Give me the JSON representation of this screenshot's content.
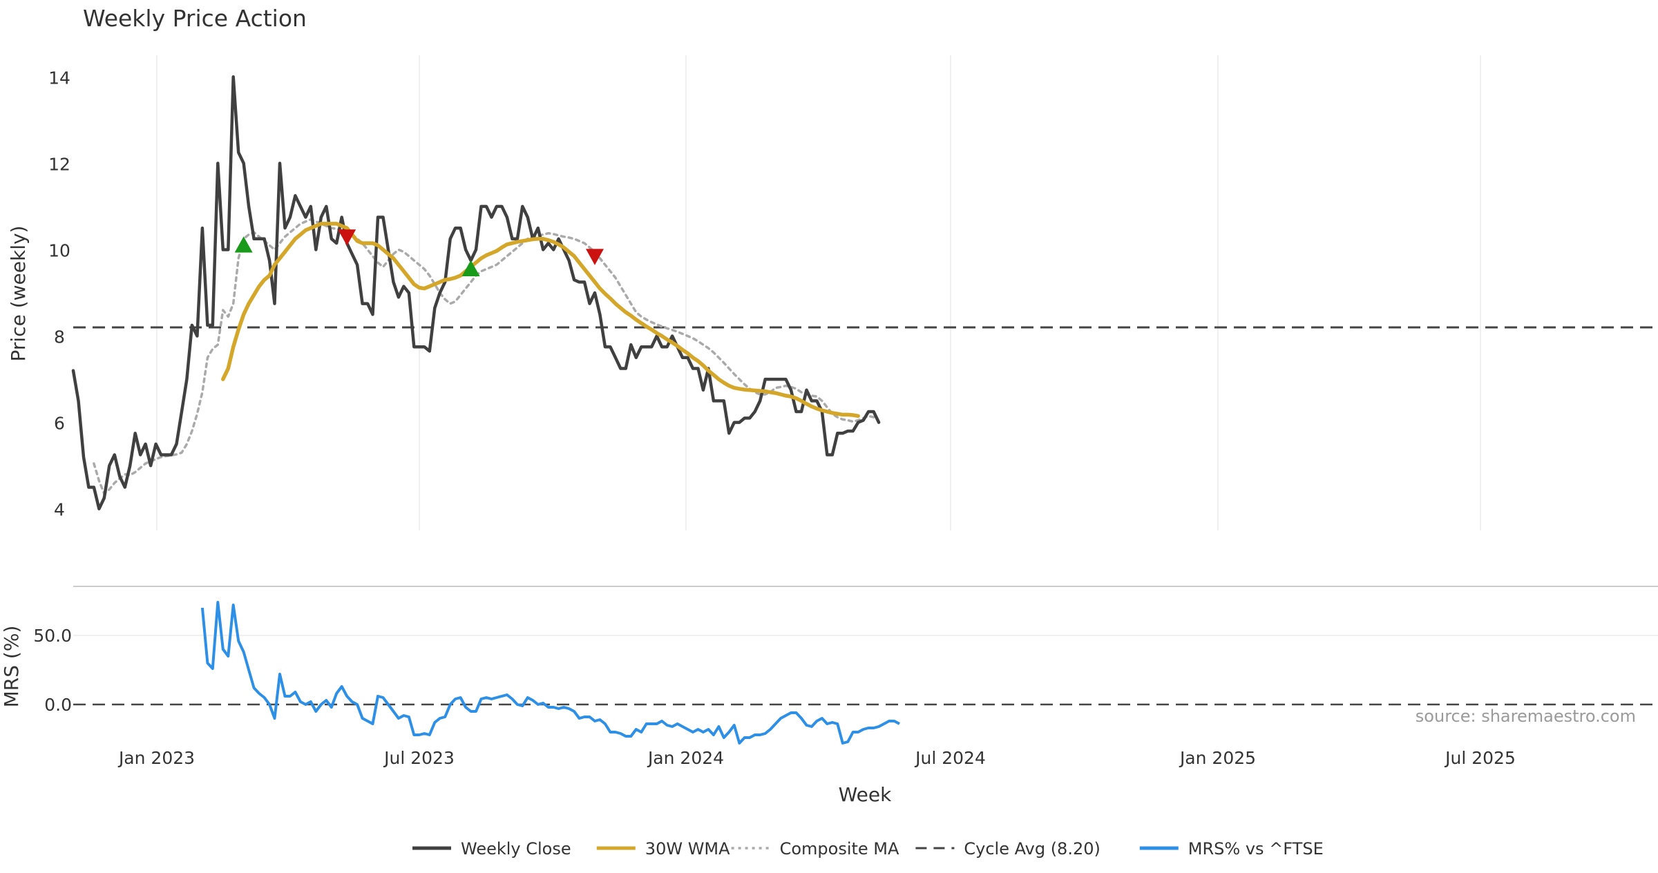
{
  "chart_data": {
    "type": "line",
    "title": "Weekly Price Action",
    "xlabel": "Week",
    "watermark": "source: sharemaestro.com",
    "x_ticks": [
      "Jan 2023",
      "Jul 2023",
      "Jan 2024",
      "Jul 2024",
      "Jan 2025",
      "Jul 2025"
    ],
    "price_panel": {
      "ylabel": "Price (weekly)",
      "ylim": [
        3.5,
        14.5
      ],
      "y_ticks": [
        4,
        6,
        8,
        10,
        12,
        14
      ],
      "grid_x": true,
      "series": [
        {
          "name": "Weekly Close",
          "color": "#404040",
          "style": "solid",
          "values": [
            7.2,
            6.5,
            5.2,
            4.5,
            4.5,
            4.0,
            4.25,
            5.0,
            5.25,
            4.75,
            4.5,
            5.0,
            5.75,
            5.25,
            5.5,
            5.0,
            5.5,
            5.25,
            5.25,
            5.25,
            5.5,
            6.25,
            7.0,
            8.25,
            8.0,
            10.5,
            8.25,
            8.25,
            12.0,
            10.0,
            10.0,
            14.0,
            12.25,
            12.0,
            11.0,
            10.25,
            10.25,
            10.25,
            9.75,
            8.75,
            12.0,
            10.5,
            10.75,
            11.25,
            11.0,
            10.75,
            11.0,
            10.0,
            10.75,
            11.0,
            10.25,
            10.15,
            10.75,
            10.15,
            9.9,
            9.65,
            8.75,
            8.75,
            8.5,
            10.75,
            10.75,
            10.0,
            9.25,
            8.9,
            9.15,
            9.0,
            7.75,
            7.75,
            7.75,
            7.65,
            8.65,
            9.0,
            9.25,
            10.25,
            10.5,
            10.5,
            10.0,
            9.75,
            10.0,
            11.0,
            11.0,
            10.75,
            11.0,
            11.0,
            10.75,
            10.25,
            10.25,
            11.0,
            10.75,
            10.25,
            10.5,
            10.0,
            10.15,
            10.0,
            10.25,
            10.0,
            9.75,
            9.3,
            9.25,
            9.25,
            8.75,
            9.0,
            8.5,
            7.75,
            7.75,
            7.5,
            7.25,
            7.25,
            7.8,
            7.5,
            7.75,
            7.75,
            7.75,
            8.0,
            7.75,
            7.75,
            8.0,
            7.75,
            7.5,
            7.5,
            7.25,
            7.25,
            6.75,
            7.25,
            6.5,
            6.5,
            6.5,
            5.75,
            6.0,
            6.0,
            6.1,
            6.1,
            6.25,
            6.5,
            7.0,
            7.0,
            7.0,
            7.0,
            7.0,
            6.75,
            6.25,
            6.25,
            6.75,
            6.5,
            6.5,
            6.25,
            5.25,
            5.25,
            5.75,
            5.75,
            5.8,
            5.8,
            6.0,
            6.05,
            6.25,
            6.25,
            6.0
          ]
        },
        {
          "name": "30W WMA",
          "color": "#d4a62a",
          "style": "solid",
          "start_index": 29,
          "values": [
            7.0,
            7.25,
            7.75,
            8.15,
            8.5,
            8.75,
            8.95,
            9.15,
            9.3,
            9.4,
            9.65,
            9.8,
            9.95,
            10.1,
            10.25,
            10.35,
            10.45,
            10.5,
            10.55,
            10.6,
            10.6,
            10.6,
            10.6,
            10.55,
            10.5,
            10.35,
            10.2,
            10.15,
            10.15,
            10.15,
            10.1,
            10.0,
            9.9,
            9.8,
            9.65,
            9.5,
            9.35,
            9.2,
            9.12,
            9.1,
            9.15,
            9.2,
            9.25,
            9.3,
            9.32,
            9.35,
            9.4,
            9.5,
            9.6,
            9.7,
            9.8,
            9.87,
            9.92,
            9.97,
            10.05,
            10.12,
            10.15,
            10.18,
            10.2,
            10.22,
            10.24,
            10.25,
            10.25,
            10.22,
            10.18,
            10.12,
            10.05,
            9.95,
            9.85,
            9.7,
            9.55,
            9.4,
            9.25,
            9.1,
            8.98,
            8.87,
            8.75,
            8.65,
            8.55,
            8.47,
            8.38,
            8.3,
            8.22,
            8.15,
            8.07,
            8.0,
            7.92,
            7.85,
            7.77,
            7.68,
            7.6,
            7.5,
            7.42,
            7.32,
            7.2,
            7.1,
            7.0,
            6.92,
            6.85,
            6.8,
            6.78,
            6.76,
            6.75,
            6.74,
            6.73,
            6.72,
            6.7,
            6.68,
            6.65,
            6.62,
            6.6,
            6.56,
            6.5,
            6.43,
            6.37,
            6.32,
            6.28,
            6.25,
            6.22,
            6.2,
            6.18,
            6.18,
            6.17,
            6.15
          ]
        },
        {
          "name": "Composite MA",
          "color": "#aaaaaa",
          "style": "dotted",
          "start_index": 4,
          "values": [
            5.05,
            4.65,
            4.35,
            4.45,
            4.6,
            4.7,
            4.8,
            4.78,
            4.85,
            4.95,
            5.05,
            5.1,
            5.15,
            5.2,
            5.22,
            5.24,
            5.26,
            5.3,
            5.5,
            5.8,
            6.2,
            6.7,
            7.5,
            7.7,
            7.8,
            8.6,
            8.45,
            8.75,
            9.8,
            10.25,
            10.35,
            10.4,
            10.3,
            10.2,
            10.1,
            10.0,
            10.15,
            10.3,
            10.4,
            10.5,
            10.6,
            10.65,
            10.7,
            10.65,
            10.6,
            10.55,
            10.5,
            10.48,
            10.45,
            10.4,
            10.35,
            10.25,
            10.15,
            10.0,
            9.85,
            9.7,
            9.6,
            9.75,
            9.9,
            10.0,
            9.95,
            9.85,
            9.75,
            9.65,
            9.55,
            9.4,
            9.2,
            9.0,
            8.85,
            8.75,
            8.8,
            8.95,
            9.1,
            9.25,
            9.4,
            9.5,
            9.55,
            9.6,
            9.65,
            9.75,
            9.85,
            9.95,
            10.05,
            10.15,
            10.25,
            10.3,
            10.32,
            10.35,
            10.38,
            10.36,
            10.33,
            10.3,
            10.28,
            10.25,
            10.2,
            10.15,
            10.05,
            9.95,
            9.8,
            9.65,
            9.5,
            9.35,
            9.15,
            8.95,
            8.75,
            8.55,
            8.45,
            8.38,
            8.32,
            8.27,
            8.22,
            8.18,
            8.14,
            8.1,
            8.05,
            8.0,
            7.95,
            7.88,
            7.8,
            7.72,
            7.62,
            7.5,
            7.38,
            7.25,
            7.12,
            7.0,
            6.88,
            6.78,
            6.7,
            6.65,
            6.65,
            6.7,
            6.8,
            6.82,
            6.85,
            6.82,
            6.78,
            6.7,
            6.65,
            6.62,
            6.6,
            6.5,
            6.35,
            6.2,
            6.12,
            6.07,
            6.05,
            6.02,
            6.05,
            6.1,
            6.15,
            6.12
          ]
        },
        {
          "name": "Cycle Avg (8.20)",
          "color": "#444444",
          "style": "dashed",
          "value": 8.2
        }
      ],
      "markers": [
        {
          "type": "buy",
          "index": 33,
          "value": 10.1,
          "color": "#1a9a1a"
        },
        {
          "type": "sell",
          "index": 53,
          "value": 10.3,
          "color": "#cc1111"
        },
        {
          "type": "buy",
          "index": 77,
          "value": 9.55,
          "color": "#1a9a1a"
        },
        {
          "type": "sell",
          "index": 101,
          "value": 9.85,
          "color": "#cc1111"
        }
      ]
    },
    "mrs_panel": {
      "ylabel": "MRS (%)",
      "ylim": [
        -30,
        80
      ],
      "y_ticks": [
        "50.0",
        "0.0"
      ],
      "y_tick_values": [
        50,
        0
      ],
      "series": [
        {
          "name": "MRS% vs ^FTSE",
          "color": "#2e8fe6",
          "start_index": 25,
          "values": [
            70,
            30,
            26,
            74,
            40,
            35,
            72,
            46,
            38,
            25,
            12,
            8,
            5,
            0,
            -10,
            22,
            6,
            6,
            9,
            2,
            0,
            2,
            -5,
            0,
            3,
            -2,
            8,
            13,
            6,
            2,
            0,
            -10,
            -12,
            -14,
            6,
            5,
            0,
            -5,
            -10,
            -8,
            -9,
            -22,
            -22,
            -21,
            -22,
            -13,
            -10,
            -9,
            0,
            4,
            5,
            -2,
            -5,
            -5,
            4,
            5,
            4,
            5,
            6,
            7,
            4,
            0,
            -1,
            5,
            3,
            0,
            1,
            -2,
            -2,
            -3,
            -2,
            -3,
            -5,
            -10,
            -9,
            -9,
            -12,
            -11,
            -14,
            -20,
            -20,
            -21,
            -23,
            -23,
            -18,
            -20,
            -14,
            -14,
            -14,
            -12,
            -15,
            -16,
            -14,
            -16,
            -18,
            -20,
            -18,
            -20,
            -18,
            -22,
            -16,
            -24,
            -20,
            -15,
            -28,
            -24,
            -24,
            -22,
            -22,
            -21,
            -18,
            -14,
            -10,
            -8,
            -6,
            -6,
            -10,
            -15,
            -16,
            -12,
            -10,
            -14,
            -13,
            -14,
            -28,
            -27,
            -20,
            -20,
            -18,
            -17,
            -17,
            -16,
            -14,
            -12,
            -12,
            -14
          ]
        }
      ],
      "reference_line": {
        "value": 0,
        "style": "dashed",
        "color": "#444444"
      }
    },
    "legend": {
      "placement": "bottom-center",
      "entries": [
        {
          "label": "Weekly Close",
          "color": "#404040",
          "style": "solid"
        },
        {
          "label": "30W WMA",
          "color": "#d4a62a",
          "style": "solid"
        },
        {
          "label": "Composite MA",
          "color": "#aaaaaa",
          "style": "dotted"
        },
        {
          "label": "Cycle Avg (8.20)",
          "color": "#444444",
          "style": "dashed"
        },
        {
          "label": "MRS% vs ^FTSE",
          "color": "#2e8fe6",
          "style": "solid"
        }
      ]
    }
  }
}
